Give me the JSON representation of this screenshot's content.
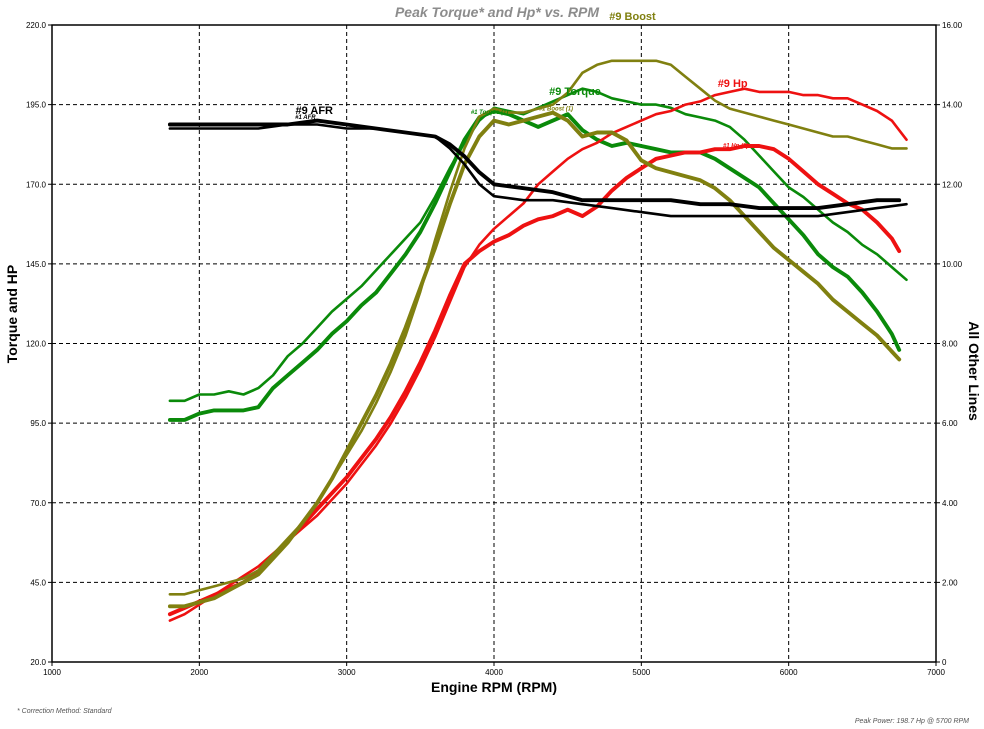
{
  "chart_data": {
    "type": "line",
    "title": "Peak Torque* and Hp* vs. RPM",
    "xlabel": "Engine RPM (RPM)",
    "ylabel_left": "Torque and HP",
    "ylabel_right": "All Other Lines",
    "xlim": [
      1000,
      7000
    ],
    "ylim_left": [
      20,
      220
    ],
    "ylim_right": [
      0,
      16
    ],
    "x_ticks": [
      "1000",
      "2000",
      "3000",
      "4000",
      "5000",
      "6000",
      "7000"
    ],
    "y_left_ticks": [
      "20.0",
      "45.0",
      "70.0",
      "95.0",
      "120.0",
      "145.0",
      "170.0",
      "195.0",
      "220.0"
    ],
    "y_right_ticks": [
      "0",
      "2.00",
      "4.00",
      "6.00",
      "8.00",
      "10.00",
      "12.00",
      "14.00",
      "16.00"
    ],
    "grid": true,
    "colors": {
      "torque": "#0a8a0a",
      "hp": "#ee1111",
      "boost": "#808010",
      "afr": "#000000"
    },
    "series": [
      {
        "name": "#9 Torque",
        "color": "#0a8a0a",
        "axis": "left",
        "width": 3,
        "x": [
          1800,
          1900,
          2000,
          2100,
          2200,
          2300,
          2400,
          2500,
          2600,
          2700,
          2800,
          2900,
          3000,
          3100,
          3200,
          3300,
          3400,
          3500,
          3600,
          3700,
          3800,
          3900,
          4000,
          4100,
          4200,
          4300,
          4400,
          4500,
          4600,
          4700,
          4800,
          4900,
          5000,
          5100,
          5200,
          5300,
          5400,
          5500,
          5600,
          5700,
          5800,
          5900,
          6000,
          6100,
          6200,
          6300,
          6400,
          6500,
          6600,
          6700,
          6750
        ],
        "y": [
          96,
          96,
          98,
          99,
          99,
          99,
          100,
          106,
          110,
          114,
          118,
          123,
          127,
          132,
          136,
          142,
          148,
          155,
          164,
          174,
          184,
          191,
          193,
          192,
          190,
          188,
          190,
          192,
          187,
          184,
          182,
          183,
          182,
          181,
          180,
          180,
          180,
          178,
          175,
          172,
          169,
          164,
          159,
          154,
          148,
          144,
          141,
          136,
          130,
          123,
          118
        ]
      },
      {
        "name": "#1 Torque",
        "color": "#0a8a0a",
        "axis": "left",
        "width": 2,
        "x": [
          1800,
          1900,
          2000,
          2100,
          2200,
          2300,
          2400,
          2500,
          2600,
          2700,
          2800,
          2900,
          3000,
          3100,
          3200,
          3300,
          3400,
          3500,
          3600,
          3700,
          3800,
          3900,
          4000,
          4100,
          4200,
          4300,
          4400,
          4500,
          4600,
          4700,
          4800,
          4900,
          5000,
          5100,
          5200,
          5300,
          5400,
          5500,
          5600,
          5700,
          5800,
          5900,
          6000,
          6100,
          6200,
          6300,
          6400,
          6500,
          6600,
          6700,
          6800
        ],
        "y": [
          102,
          102,
          104,
          104,
          105,
          104,
          106,
          110,
          116,
          120,
          125,
          130,
          134,
          138,
          143,
          148,
          153,
          158,
          166,
          175,
          183,
          190,
          194,
          193,
          192,
          194,
          196,
          198,
          200,
          199,
          197,
          196,
          195,
          195,
          194,
          192,
          191,
          190,
          188,
          184,
          179,
          174,
          169,
          166,
          162,
          158,
          155,
          151,
          148,
          144,
          140
        ]
      },
      {
        "name": "#9 Hp",
        "color": "#ee1111",
        "axis": "left",
        "width": 2,
        "x": [
          1800,
          1900,
          2000,
          2100,
          2200,
          2300,
          2400,
          2500,
          2600,
          2700,
          2800,
          2900,
          3000,
          3100,
          3200,
          3300,
          3400,
          3500,
          3600,
          3700,
          3800,
          3900,
          4000,
          4100,
          4200,
          4300,
          4400,
          4500,
          4600,
          4700,
          4800,
          4900,
          5000,
          5100,
          5200,
          5300,
          5400,
          5500,
          5600,
          5700,
          5800,
          5900,
          6000,
          6100,
          6200,
          6300,
          6400,
          6500,
          6600,
          6700,
          6800
        ],
        "y": [
          33,
          35,
          38,
          41,
          44,
          47,
          50,
          54,
          58,
          62,
          66,
          71,
          76,
          82,
          88,
          95,
          103,
          112,
          122,
          133,
          144,
          151,
          156,
          160,
          164,
          170,
          174,
          178,
          181,
          183,
          186,
          188,
          190,
          192,
          193,
          195,
          196,
          198,
          199,
          200,
          199,
          199,
          199,
          198,
          198,
          197,
          197,
          195,
          193,
          190,
          184
        ]
      },
      {
        "name": "#1 Hp",
        "color": "#ee1111",
        "axis": "left",
        "width": 3,
        "x": [
          1800,
          1900,
          2000,
          2100,
          2200,
          2300,
          2400,
          2500,
          2600,
          2700,
          2800,
          2900,
          3000,
          3100,
          3200,
          3300,
          3400,
          3500,
          3600,
          3700,
          3800,
          3900,
          4000,
          4100,
          4200,
          4300,
          4400,
          4500,
          4600,
          4700,
          4800,
          4900,
          5000,
          5100,
          5200,
          5300,
          5400,
          5500,
          5600,
          5700,
          5800,
          5900,
          6000,
          6100,
          6200,
          6300,
          6400,
          6500,
          6600,
          6700,
          6750
        ],
        "y": [
          35,
          37,
          39,
          41,
          43,
          45,
          48,
          53,
          58,
          63,
          68,
          73,
          78,
          84,
          90,
          97,
          105,
          114,
          124,
          135,
          145,
          149,
          152,
          154,
          157,
          159,
          160,
          162,
          160,
          163,
          168,
          172,
          175,
          178,
          179,
          180,
          180,
          181,
          181,
          182,
          182,
          181,
          178,
          174,
          170,
          167,
          164,
          162,
          158,
          153,
          149
        ]
      },
      {
        "name": "#9 Boost",
        "color": "#808010",
        "axis": "right",
        "width": 2,
        "x": [
          1800,
          1900,
          2000,
          2100,
          2200,
          2300,
          2400,
          2500,
          2600,
          2700,
          2800,
          2900,
          3000,
          3100,
          3200,
          3300,
          3400,
          3500,
          3600,
          3700,
          3800,
          3900,
          4000,
          4100,
          4200,
          4300,
          4400,
          4500,
          4600,
          4700,
          4800,
          4900,
          5000,
          5100,
          5200,
          5300,
          5400,
          5500,
          5600,
          5700,
          5800,
          5900,
          6000,
          6100,
          6200,
          6300,
          6400,
          6500,
          6600,
          6700,
          6800
        ],
        "y": [
          1.7,
          1.7,
          1.8,
          1.9,
          2.0,
          2.1,
          2.3,
          2.7,
          3.1,
          3.5,
          4.0,
          4.6,
          5.2,
          5.8,
          6.5,
          7.3,
          8.2,
          9.3,
          10.6,
          11.8,
          12.9,
          13.7,
          13.9,
          13.8,
          13.8,
          13.9,
          14.0,
          14.3,
          14.8,
          15.0,
          15.1,
          15.1,
          15.1,
          15.1,
          15.0,
          14.7,
          14.4,
          14.1,
          13.9,
          13.8,
          13.7,
          13.6,
          13.5,
          13.4,
          13.3,
          13.2,
          13.2,
          13.1,
          13.0,
          12.9,
          12.9
        ]
      },
      {
        "name": "#1 Boost",
        "color": "#808010",
        "axis": "right",
        "width": 3,
        "x": [
          1800,
          1900,
          2000,
          2100,
          2200,
          2300,
          2400,
          2500,
          2600,
          2700,
          2800,
          2900,
          3000,
          3100,
          3200,
          3300,
          3400,
          3500,
          3600,
          3700,
          3800,
          3900,
          4000,
          4100,
          4200,
          4300,
          4400,
          4500,
          4600,
          4700,
          4800,
          4900,
          5000,
          5100,
          5200,
          5300,
          5400,
          5500,
          5600,
          5700,
          5800,
          5900,
          6000,
          6100,
          6200,
          6300,
          6400,
          6500,
          6600,
          6700,
          6750
        ],
        "y": [
          1.4,
          1.4,
          1.5,
          1.6,
          1.8,
          2.0,
          2.2,
          2.6,
          3.0,
          3.5,
          4.0,
          4.6,
          5.3,
          6.0,
          6.7,
          7.5,
          8.4,
          9.4,
          10.4,
          11.5,
          12.5,
          13.2,
          13.6,
          13.5,
          13.6,
          13.7,
          13.8,
          13.6,
          13.2,
          13.3,
          13.3,
          13.1,
          12.6,
          12.4,
          12.3,
          12.2,
          12.1,
          11.9,
          11.6,
          11.2,
          10.8,
          10.4,
          10.1,
          9.8,
          9.5,
          9.1,
          8.8,
          8.5,
          8.2,
          7.8,
          7.6
        ]
      },
      {
        "name": "#9 AFR",
        "color": "#000000",
        "axis": "right",
        "width": 3,
        "x": [
          1800,
          2000,
          2200,
          2400,
          2600,
          2800,
          3000,
          3200,
          3400,
          3600,
          3700,
          3800,
          3900,
          4000,
          4200,
          4400,
          4600,
          4800,
          5000,
          5200,
          5400,
          5600,
          5800,
          6000,
          6200,
          6400,
          6600,
          6750
        ],
        "y": [
          13.5,
          13.5,
          13.5,
          13.5,
          13.5,
          13.6,
          13.5,
          13.4,
          13.3,
          13.2,
          13.0,
          12.7,
          12.3,
          12.0,
          11.9,
          11.8,
          11.6,
          11.6,
          11.6,
          11.6,
          11.5,
          11.5,
          11.4,
          11.4,
          11.4,
          11.5,
          11.6,
          11.6
        ]
      },
      {
        "name": "#1 AFR",
        "color": "#000000",
        "axis": "right",
        "width": 2,
        "x": [
          1800,
          2000,
          2200,
          2400,
          2600,
          2800,
          3000,
          3200,
          3400,
          3600,
          3700,
          3800,
          3900,
          4000,
          4200,
          4400,
          4600,
          4800,
          5000,
          5200,
          5400,
          5600,
          5800,
          6000,
          6200,
          6400,
          6600,
          6800
        ],
        "y": [
          13.4,
          13.4,
          13.4,
          13.4,
          13.5,
          13.5,
          13.4,
          13.4,
          13.3,
          13.2,
          12.9,
          12.5,
          12.0,
          11.7,
          11.6,
          11.6,
          11.5,
          11.4,
          11.3,
          11.2,
          11.2,
          11.2,
          11.2,
          11.2,
          11.2,
          11.3,
          11.4,
          11.5
        ]
      }
    ],
    "annotations": [
      {
        "text": "#9 Torque",
        "size": "large",
        "color": "#0a8a0a",
        "x": 4550,
        "y": 198
      },
      {
        "text": "#9 Boost",
        "size": "large",
        "color": "#808010",
        "x": 4940,
        "y": 221.5
      },
      {
        "text": "#9 Hp",
        "size": "large",
        "color": "#ee1111",
        "x": 5620,
        "y": 200.5
      },
      {
        "text": "#9 AFR",
        "size": "large",
        "color": "#000000",
        "x": 2780,
        "y": 192
      },
      {
        "text": "#1 Torque (1)",
        "size": "small",
        "color": "#0a8a0a",
        "x": 3970,
        "y": 192
      },
      {
        "text": "#1 Boost (1)",
        "size": "small",
        "color": "#808010",
        "x": 4420,
        "y": 193.2
      },
      {
        "text": "#1 Hp (1)",
        "size": "small",
        "color": "#ee1111",
        "x": 5640,
        "y": 181.5
      },
      {
        "text": "#1 AFR",
        "size": "small",
        "color": "#000000",
        "x": 2720,
        "y": 190.5
      }
    ]
  },
  "footer": {
    "correction_note": "* Correction Method: Standard",
    "peak_power": "Peak Power: 198.7 Hp @ 5700 RPM"
  }
}
